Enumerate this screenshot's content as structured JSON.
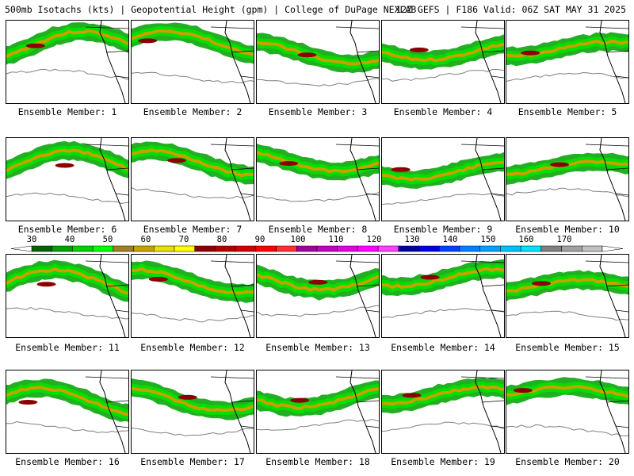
{
  "header": {
    "left": "500mb Isotachs (kts) | Geopotential Height (gpm) | College of DuPage NEXLAB",
    "right": "12Z GEFS | F186 Valid: 06Z SAT MAY 31 2025"
  },
  "members": [
    "Ensemble Member: 1",
    "Ensemble Member: 2",
    "Ensemble Member: 3",
    "Ensemble Member: 4",
    "Ensemble Member: 5",
    "Ensemble Member: 6",
    "Ensemble Member: 7",
    "Ensemble Member: 8",
    "Ensemble Member: 9",
    "Ensemble Member: 10",
    "Ensemble Member: 11",
    "Ensemble Member: 12",
    "Ensemble Member: 13",
    "Ensemble Member: 14",
    "Ensemble Member: 15",
    "Ensemble Member: 16",
    "Ensemble Member: 17",
    "Ensemble Member: 18",
    "Ensemble Member: 19",
    "Ensemble Member: 20"
  ],
  "colorbar": {
    "labels": [
      "30",
      "40",
      "50",
      "60",
      "70",
      "80",
      "90",
      "100",
      "110",
      "120",
      "130",
      "140",
      "150",
      "160",
      "170"
    ],
    "colors": [
      "#006400",
      "#00a000",
      "#00d000",
      "#00ff00",
      "#a08020",
      "#c8a000",
      "#e8e000",
      "#ffff00",
      "#8b0000",
      "#b00000",
      "#d00000",
      "#ff0000",
      "#ff3030",
      "#a000a0",
      "#c000c0",
      "#e000e0",
      "#ff00ff",
      "#ff40ff",
      "#0000a0",
      "#0000e0",
      "#0040ff",
      "#0080ff",
      "#00a0ff",
      "#00c0ff",
      "#00e0ff",
      "#808080",
      "#a0a0a0",
      "#c0c0c0"
    ]
  }
}
